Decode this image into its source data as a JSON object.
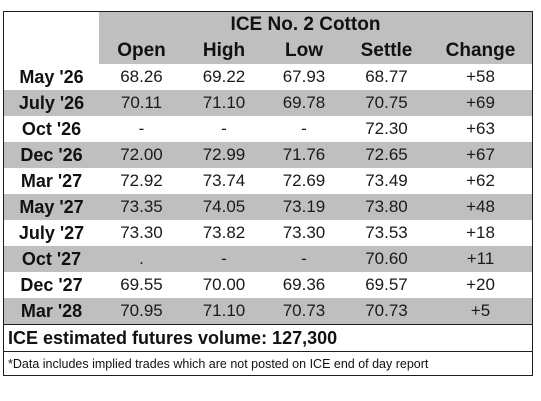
{
  "table": {
    "title": "ICE No. 2 Cotton",
    "columns": [
      "Open",
      "High",
      "Low",
      "Settle",
      "Change"
    ],
    "rows": [
      {
        "month": "May '26",
        "open": "68.26",
        "high": "69.22",
        "low": "67.93",
        "settle": "68.77",
        "change": "+58"
      },
      {
        "month": "July '26",
        "open": "70.11",
        "high": "71.10",
        "low": "69.78",
        "settle": "70.75",
        "change": "+69"
      },
      {
        "month": "Oct '26",
        "open": "-",
        "high": "-",
        "low": "-",
        "settle": "72.30",
        "change": "+63"
      },
      {
        "month": "Dec '26",
        "open": "72.00",
        "high": "72.99",
        "low": "71.76",
        "settle": "72.65",
        "change": "+67"
      },
      {
        "month": "Mar '27",
        "open": "72.92",
        "high": "73.74",
        "low": "72.69",
        "settle": "73.49",
        "change": "+62"
      },
      {
        "month": "May '27",
        "open": "73.35",
        "high": "74.05",
        "low": "73.19",
        "settle": "73.80",
        "change": "+48"
      },
      {
        "month": "July '27",
        "open": "73.30",
        "high": "73.82",
        "low": "73.30",
        "settle": "73.53",
        "change": "+18"
      },
      {
        "month": "Oct '27",
        "open": ".",
        "high": "-",
        "low": "-",
        "settle": "70.60",
        "change": "+11"
      },
      {
        "month": "Dec '27",
        "open": "69.55",
        "high": "70.00",
        "low": "69.36",
        "settle": "69.57",
        "change": "+20"
      },
      {
        "month": "Mar '28",
        "open": "70.95",
        "high": "71.10",
        "low": "70.73",
        "settle": "70.73",
        "change": "+5"
      }
    ],
    "volume_text": "ICE estimated futures volume: 127,300",
    "footnote": "*Data includes implied trades which are not posted on ICE end of day report"
  },
  "colors": {
    "shade": "#bfbfbf",
    "border": "#1e1e1e"
  }
}
